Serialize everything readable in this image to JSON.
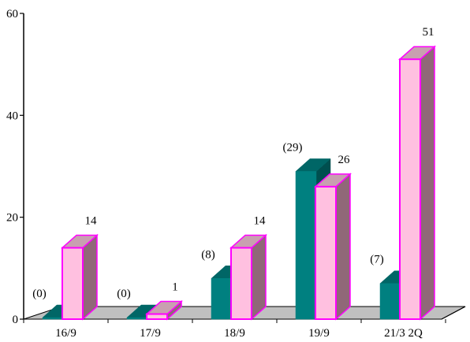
{
  "chart_data": {
    "type": "bar",
    "three_d": true,
    "categories": [
      "16/9",
      "17/9",
      "18/9",
      "19/9",
      "21/3 2Q"
    ],
    "series": [
      {
        "values": [
          0,
          0,
          8,
          29,
          7
        ],
        "labels": [
          "(0)",
          "(0)",
          "(8)",
          "(29)",
          "(7)"
        ],
        "color": "#008080"
      },
      {
        "values": [
          14,
          1,
          14,
          26,
          51
        ],
        "labels": [
          "14",
          "1",
          "14",
          "26",
          "51"
        ],
        "color": "#FFC0E0"
      }
    ],
    "ylim": [
      0,
      60
    ],
    "yticks": [
      "0",
      "20",
      "40",
      "60"
    ],
    "floor_color": "#C0C0C0",
    "grid": false
  },
  "colors": {
    "series_a_front": "#008080",
    "series_a_top": "#006666",
    "series_a_side": "#004F4F",
    "series_b_front": "#FFC0E0",
    "series_b_top": "#C8A0B0",
    "series_b_side": "#906878",
    "series_b_outline": "#FF00FF"
  }
}
